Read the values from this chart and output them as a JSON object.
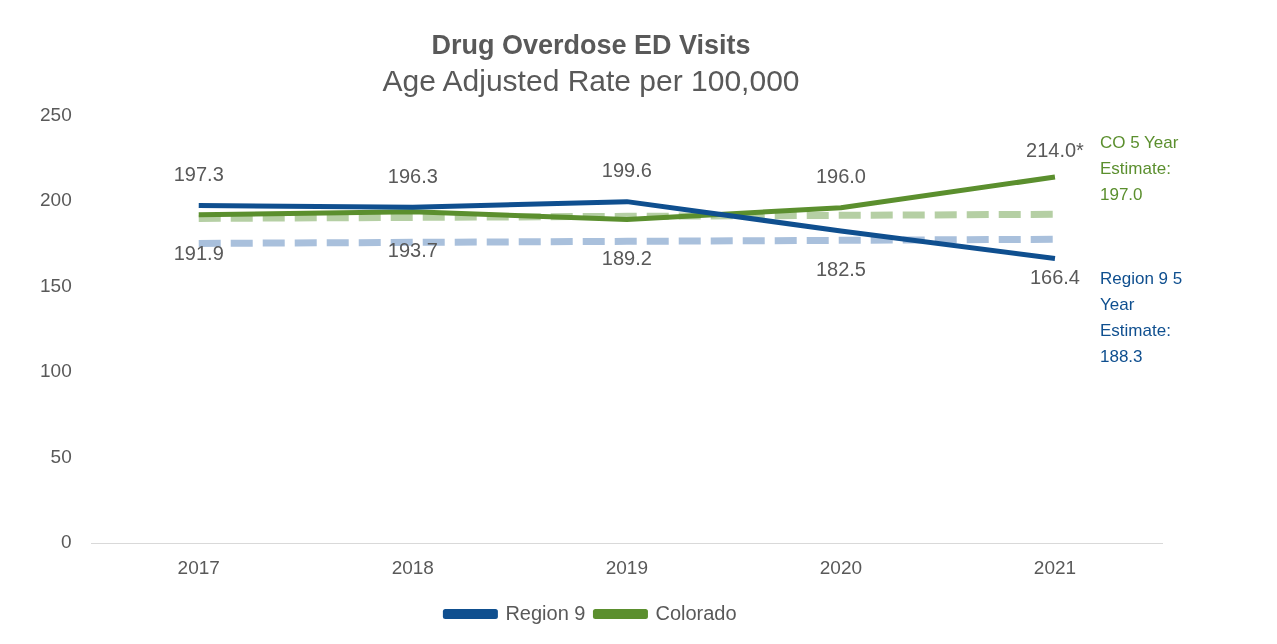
{
  "chart_data": {
    "type": "line",
    "title": "Drug Overdose ED Visits",
    "subtitle": "Age Adjusted Rate per 100,000",
    "categories": [
      "2017",
      "2018",
      "2019",
      "2020",
      "2021"
    ],
    "series": [
      {
        "name": "Region 9",
        "color": "#0f4f8f",
        "values": [
          197.3,
          196.3,
          199.6,
          182.5,
          166.4
        ],
        "value_labels": [
          "197.3",
          "196.3",
          "199.6",
          "182.5",
          "166.4"
        ]
      },
      {
        "name": "Colorado",
        "color": "#5b8f2e",
        "values": [
          191.9,
          193.7,
          189.2,
          196.0,
          214.0
        ],
        "value_labels": [
          "191.9",
          "193.7",
          "189.2",
          "196.0",
          "214.0*"
        ]
      },
      {
        "color": "#b5cfa4",
        "values": [
          189.8,
          190.4,
          191.0,
          191.6,
          192.2
        ],
        "line_style": "dashed"
      },
      {
        "color": "#a9c0dc",
        "values": [
          175.2,
          175.8,
          176.4,
          177.0,
          177.6
        ],
        "line_style": "dashed"
      }
    ],
    "annotations": [
      "CO 5 Year Estimate: 197.0",
      "Region 9 5 Year Estimate: 188.3"
    ],
    "ylim": [
      0,
      250
    ],
    "yticks": [
      0,
      50,
      100,
      150,
      200,
      250
    ],
    "grid": false,
    "legend": "bottom",
    "marker": "none"
  }
}
